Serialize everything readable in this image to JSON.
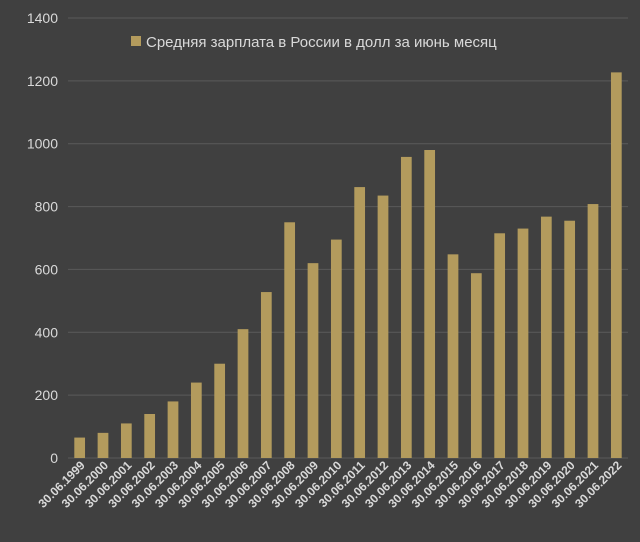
{
  "colors": {
    "background": "#404040",
    "bar": "#b39b5d",
    "grid": "#5a5a5a",
    "text": "#d9d9d9"
  },
  "chart_data": {
    "type": "bar",
    "legend": {
      "position": "top",
      "label": "Средняя зарплата в России в долл за июнь месяц"
    },
    "grid": true,
    "ylim": [
      0,
      1400
    ],
    "yticks": [
      0,
      200,
      400,
      600,
      800,
      1000,
      1200,
      1400
    ],
    "categories": [
      "30.06.1999",
      "30.06.2000",
      "30.06.2001",
      "30.06.2002",
      "30.06.2003",
      "30.06.2004",
      "30.06.2005",
      "30.06.2006",
      "30.06.2007",
      "30.06.2008",
      "30.06.2009",
      "30.06.2010",
      "30.06.2011",
      "30.06.2012",
      "30.06.2013",
      "30.06.2014",
      "30.06.2015",
      "30.06.2016",
      "30.06.2017",
      "30.06.2018",
      "30.06.2019",
      "30.06.2020",
      "30.06.2021",
      "30.06.2022"
    ],
    "series": [
      {
        "name": "Средняя зарплата в России в долл за июнь месяц",
        "values": [
          65,
          80,
          110,
          140,
          180,
          240,
          300,
          410,
          528,
          750,
          620,
          695,
          862,
          835,
          958,
          980,
          648,
          588,
          715,
          730,
          768,
          755,
          808,
          1227
        ]
      }
    ]
  }
}
